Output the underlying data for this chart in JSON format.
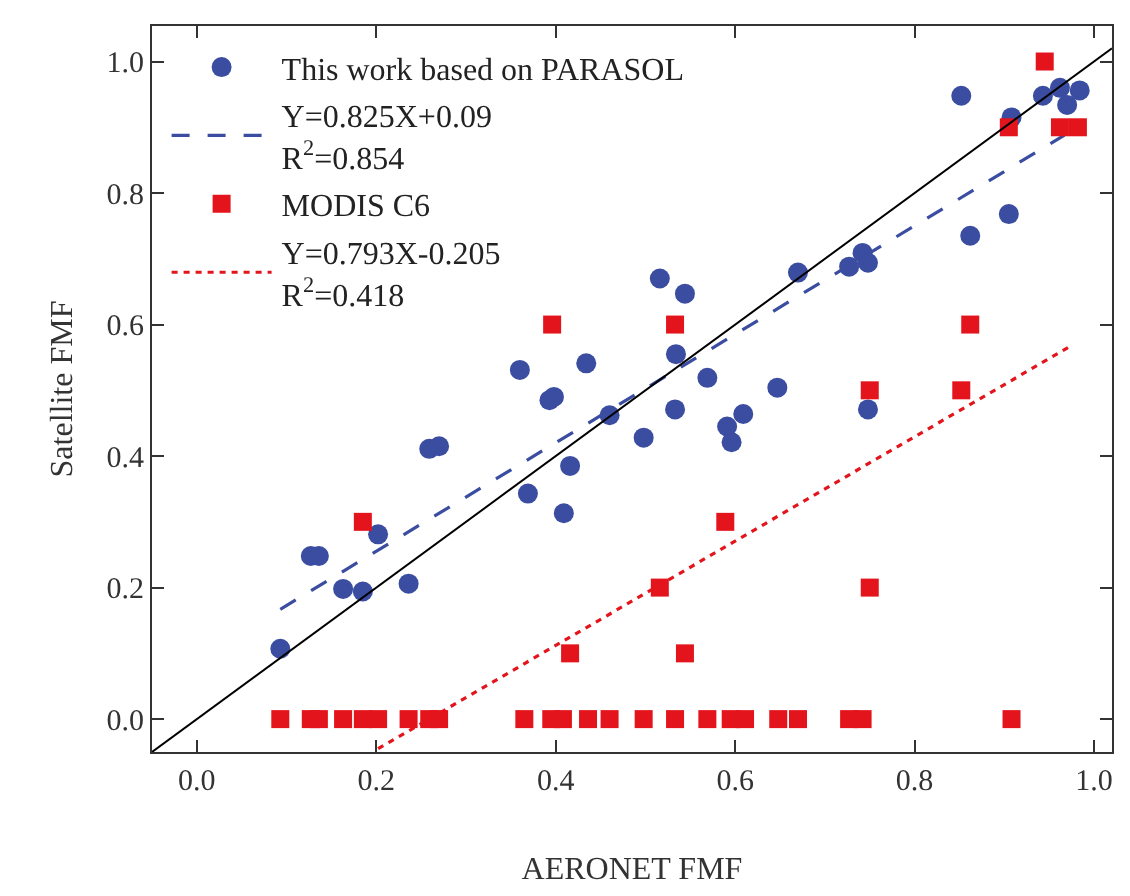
{
  "chart_data": {
    "type": "scatter",
    "xlabel": "AERONET FMF",
    "ylabel": "Satellite FMF",
    "xlim": [
      -0.05,
      1.02
    ],
    "ylim": [
      -0.05,
      1.054
    ],
    "xticks": [
      {
        "value": 0,
        "label": "0.0"
      },
      {
        "value": 0.2,
        "label": "0.2"
      },
      {
        "value": 0.4,
        "label": "0.4"
      },
      {
        "value": 0.6,
        "label": "0.6"
      },
      {
        "value": 0.8,
        "label": "0.8"
      },
      {
        "value": 1,
        "label": "1.0"
      }
    ],
    "yticks": [
      {
        "value": 0,
        "label": "0.0"
      },
      {
        "value": 0.2,
        "label": "0.2"
      },
      {
        "value": 0.4,
        "label": "0.4"
      },
      {
        "value": 0.6,
        "label": "0.6"
      },
      {
        "value": 0.8,
        "label": "0.8"
      },
      {
        "value": 1,
        "label": "1.0"
      }
    ],
    "legend": "top left",
    "series": [
      {
        "name": "This work based on PARASOL",
        "marker": "circle",
        "color": "#3a4da0",
        "x": [
          0.093,
          0.127,
          0.136,
          0.163,
          0.185,
          0.202,
          0.236,
          0.259,
          0.27,
          0.369,
          0.416,
          0.409,
          0.498,
          0.36,
          0.393,
          0.398,
          0.434,
          0.46,
          0.516,
          0.544,
          0.534,
          0.569,
          0.533,
          0.591,
          0.596,
          0.609,
          0.647,
          0.67,
          0.727,
          0.742,
          0.748,
          0.748,
          0.852,
          0.862,
          0.905,
          0.908,
          0.943,
          0.962,
          0.97,
          0.984
        ],
        "values": [
          0.107,
          0.248,
          0.248,
          0.198,
          0.194,
          0.281,
          0.206,
          0.411,
          0.415,
          0.343,
          0.385,
          0.313,
          0.428,
          0.531,
          0.485,
          0.49,
          0.541,
          0.462,
          0.67,
          0.647,
          0.555,
          0.519,
          0.471,
          0.445,
          0.421,
          0.464,
          0.504,
          0.679,
          0.688,
          0.709,
          0.694,
          0.471,
          0.948,
          0.735,
          0.768,
          0.915,
          0.948,
          0.96,
          0.934,
          0.956
        ]
      },
      {
        "name": "Y=0.825X+0.09\nR$^{2}$=0.854",
        "type": "line",
        "line_style": "dashed",
        "marker": "none",
        "color": "#3a4da0",
        "x": [
          0.093,
          0.967
        ],
        "values": [
          0.167,
          0.888
        ]
      },
      {
        "name": "MODIS C6",
        "marker": "square",
        "color": "#e3141b",
        "x": [
          0.093,
          0.127,
          0.136,
          0.163,
          0.185,
          0.202,
          0.236,
          0.259,
          0.27,
          0.365,
          0.395,
          0.408,
          0.436,
          0.46,
          0.498,
          0.533,
          0.569,
          0.595,
          0.611,
          0.648,
          0.67,
          0.727,
          0.742,
          0.908,
          0.185,
          0.416,
          0.516,
          0.544,
          0.589,
          0.75,
          0.533,
          0.862,
          0.75,
          0.852,
          0.396,
          0.945,
          0.905,
          0.962,
          0.982
        ],
        "values": [
          0,
          0,
          0,
          0,
          0,
          0,
          0,
          0,
          0,
          0,
          0,
          0,
          0,
          0,
          0,
          0,
          0,
          0,
          0,
          0,
          0,
          0,
          0,
          0,
          0.3,
          0.1,
          0.2,
          0.1,
          0.3,
          0.2,
          0.6,
          0.6,
          0.5,
          0.5,
          0.6,
          1.0,
          0.9,
          0.9,
          0.9
        ]
      },
      {
        "name": "Y=0.793X-0.205\nR$^{2}$=0.418",
        "type": "line",
        "line_style": "dotted",
        "marker": "none",
        "color": "#e3141b",
        "x": [
          0.202,
          0.976
        ],
        "values": [
          -0.045,
          0.569
        ]
      },
      {
        "type": "line",
        "line_style": "solid",
        "marker": "none",
        "color": "#000000",
        "x": [
          -0.05,
          1.02
        ],
        "values": [
          -0.05,
          1.02
        ]
      }
    ]
  }
}
